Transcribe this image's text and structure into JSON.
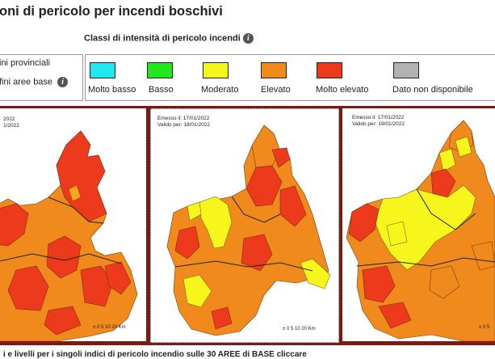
{
  "header": {
    "title": "oni di pericolo per incendi boschivi",
    "classes_title": "Classi di intensità di pericolo incendi",
    "info_icon": "info-icon"
  },
  "boundaries": {
    "items": [
      {
        "label": "ini provinciali"
      },
      {
        "label": "fini aree base"
      }
    ]
  },
  "legend": {
    "items": [
      {
        "label": "Molto basso",
        "color": "#22e6f2"
      },
      {
        "label": "Basso",
        "color": "#22e61e"
      },
      {
        "label": "Moderato",
        "color": "#f6f51c"
      },
      {
        "label": "Elevato",
        "color": "#f08a1c"
      },
      {
        "label": "Molto elevato",
        "color": "#ee3a1c"
      },
      {
        "label": "Dato non disponibile",
        "color": "#b2b2b2"
      }
    ]
  },
  "maps": [
    {
      "issued": "2022",
      "valid": "1/2022",
      "scale_label": "0  5 10    20",
      "scale_unit": "Km"
    },
    {
      "issued": "Emesso il: 17/01/2022",
      "valid": "Valido per: 18/01/2022",
      "scale_label": "0  5 10    20",
      "scale_unit": "Km"
    },
    {
      "issued": "Emesso il: 17/01/2022",
      "valid": "Valido per: 19/01/2022",
      "scale_label": "0  5",
      "scale_unit": ""
    }
  ],
  "footer": {
    "text": "i e livelli per i singoli indici di pericolo incendio sulle 30 AREE di BASE cliccare"
  }
}
